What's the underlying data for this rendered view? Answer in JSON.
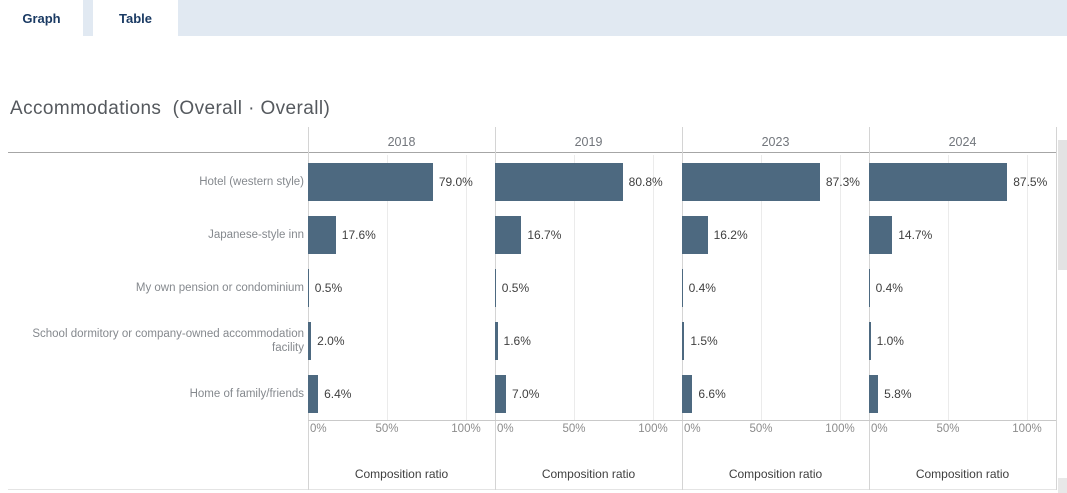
{
  "tabs": [
    {
      "label": "Graph",
      "active": true
    },
    {
      "label": "Table",
      "active": false
    }
  ],
  "title": "Accommodations  (Overall · Overall)",
  "chart_data": {
    "type": "bar",
    "orientation": "horizontal",
    "title": "Accommodations  (Overall · Overall)",
    "categories": [
      "Hotel (western style)",
      "Japanese-style inn",
      "My own pension or condominium",
      "School dormitory or company-owned accommodation facility",
      "Home of family/friends"
    ],
    "series": [
      {
        "name": "2018",
        "values": [
          79.0,
          17.6,
          0.5,
          2.0,
          6.4
        ]
      },
      {
        "name": "2019",
        "values": [
          80.8,
          16.7,
          0.5,
          1.6,
          7.0
        ]
      },
      {
        "name": "2023",
        "values": [
          87.3,
          16.2,
          0.4,
          1.5,
          6.6
        ]
      },
      {
        "name": "2024",
        "values": [
          87.5,
          14.7,
          0.4,
          1.0,
          5.8
        ]
      }
    ],
    "value_labels": [
      [
        "79.0%",
        "17.6%",
        "0.5%",
        "2.0%",
        "6.4%"
      ],
      [
        "80.8%",
        "16.7%",
        "0.5%",
        "1.6%",
        "7.0%"
      ],
      [
        "87.3%",
        "16.2%",
        "0.4%",
        "1.5%",
        "6.6%"
      ],
      [
        "87.5%",
        "14.7%",
        "0.4%",
        "1.0%",
        "5.8%"
      ]
    ],
    "xlabel": "Composition ratio",
    "x_ticks": [
      "0%",
      "50%",
      "100%"
    ],
    "xlim": [
      0,
      100
    ],
    "grid": true,
    "legend": "none",
    "bar_color": "#4d6980"
  },
  "colors": {
    "tabbar_bg": "#e1e9f2",
    "tab_text": "#1a3a63",
    "bar": "#4d6980",
    "title_text": "#55595e"
  }
}
